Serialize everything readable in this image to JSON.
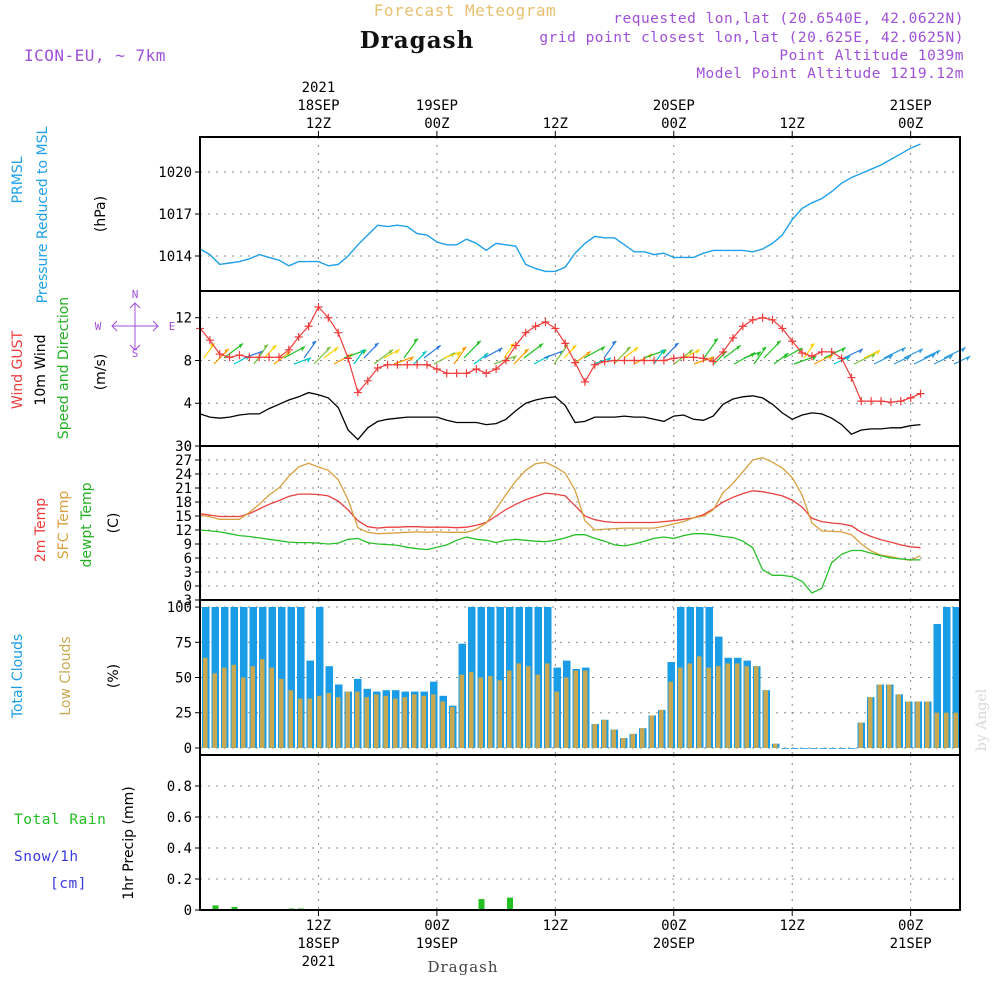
{
  "header": {
    "forecast_title": "Forecast Meteogram",
    "location": "Dragash",
    "model": "ICON-EU, ~ 7km",
    "requested": "requested lon,lat (20.6540E, 42.0622N)",
    "grid_point": "grid point closest lon,lat (20.625E, 42.0625N)",
    "point_altitude": "Point Altitude 1039m",
    "model_altitude": "Model Point Altitude 1219.12m",
    "footer_location": "Dragash",
    "watermark": "by Angel"
  },
  "colors": {
    "pressure": "#1fa0e8",
    "gust": "#f03c3c",
    "wind": "#000000",
    "temp2m": "#e84040",
    "sfc": "#d8a040",
    "dewpt": "#28c028",
    "total_clouds": "#1a9de6",
    "low_clouds": "#c8a850",
    "rain": "#22c022",
    "snow": "#3a3ae0",
    "purple": "#a050d8"
  },
  "time_axis": {
    "top_labels": [
      {
        "line0": "2021",
        "line1": "18SEP",
        "line2": "12Z",
        "hour": 12
      },
      {
        "line0": "",
        "line1": "19SEP",
        "line2": "00Z",
        "hour": 24
      },
      {
        "line0": "",
        "line1": "",
        "line2": "12Z",
        "hour": 36
      },
      {
        "line0": "",
        "line1": "20SEP",
        "line2": "00Z",
        "hour": 48
      },
      {
        "line0": "",
        "line1": "",
        "line2": "12Z",
        "hour": 60
      },
      {
        "line0": "",
        "line1": "21SEP",
        "line2": "00Z",
        "hour": 72
      }
    ],
    "bottom_labels": [
      {
        "line1": "12Z",
        "line2": "18SEP",
        "line3": "2021",
        "hour": 12
      },
      {
        "line1": "00Z",
        "line2": "19SEP",
        "line3": "",
        "hour": 24
      },
      {
        "line1": "12Z",
        "line2": "",
        "line3": "",
        "hour": 36
      },
      {
        "line1": "00Z",
        "line2": "20SEP",
        "line3": "",
        "hour": 48
      },
      {
        "line1": "12Z",
        "line2": "",
        "line3": "",
        "hour": 60
      },
      {
        "line1": "00Z",
        "line2": "21SEP",
        "line3": "",
        "hour": 72
      }
    ],
    "range_hours": [
      0,
      77
    ]
  },
  "chart_data": [
    {
      "type": "line",
      "title": "PRMSL Pressure Reduced to MSL",
      "ylabel_lines": [
        "PRMSL",
        "Pressure Reduced to MSL"
      ],
      "units": "(hPa)",
      "ylim": [
        1011.5,
        1022.5
      ],
      "yticks": [
        1014,
        1017,
        1020
      ],
      "series": [
        {
          "name": "PRMSL",
          "values": [
            1014.5,
            1014.1,
            1013.4,
            1013.5,
            1013.6,
            1013.8,
            1014.1,
            1013.9,
            1013.7,
            1013.3,
            1013.6,
            1013.6,
            1013.6,
            1013.3,
            1013.4,
            1014.0,
            1014.8,
            1015.5,
            1016.2,
            1016.1,
            1016.2,
            1016.1,
            1015.6,
            1015.5,
            1015.0,
            1014.8,
            1014.8,
            1015.2,
            1014.9,
            1014.4,
            1014.9,
            1014.8,
            1014.7,
            1013.4,
            1013.1,
            1012.9,
            1012.9,
            1013.2,
            1014.2,
            1014.9,
            1015.4,
            1015.3,
            1015.3,
            1014.8,
            1014.3,
            1014.3,
            1014.1,
            1014.2,
            1013.9,
            1013.9,
            1013.9,
            1014.2,
            1014.4,
            1014.4,
            1014.4,
            1014.4,
            1014.3,
            1014.5,
            1014.9,
            1015.5,
            1016.6,
            1017.4,
            1017.8,
            1018.1,
            1018.6,
            1019.2,
            1019.6,
            1019.9,
            1020.2,
            1020.5,
            1020.9,
            1021.3,
            1021.7,
            1022.0
          ]
        }
      ]
    },
    {
      "type": "line",
      "title": "Wind GUST / 10m Wind Speed and Direction",
      "ylabel_lines": [
        "Wind GUST",
        "10m Wind",
        "Speed and Direction"
      ],
      "units": "(m/s)",
      "compass": {
        "n": "N",
        "s": "S",
        "w": "W",
        "e": "E"
      },
      "ylim": [
        0,
        14.5
      ],
      "yticks": [
        0,
        4,
        8,
        12
      ],
      "series": [
        {
          "name": "Wind GUST",
          "values": [
            11.0,
            9.9,
            8.6,
            8.3,
            8.5,
            8.3,
            8.3,
            8.3,
            8.3,
            9.0,
            10.2,
            11.2,
            13.0,
            12.0,
            10.6,
            8.2,
            5.0,
            6.1,
            7.3,
            7.6,
            7.6,
            7.6,
            7.6,
            7.6,
            7.2,
            6.8,
            6.8,
            6.8,
            7.2,
            6.8,
            7.2,
            8.0,
            9.4,
            10.6,
            11.2,
            11.6,
            11.0,
            9.6,
            7.8,
            6.0,
            7.6,
            7.9,
            8.0,
            8.0,
            8.0,
            8.0,
            8.0,
            8.0,
            8.2,
            8.3,
            8.3,
            8.2,
            7.9,
            8.8,
            10.1,
            11.2,
            11.8,
            12.0,
            11.8,
            11.0,
            9.8,
            8.7,
            8.4,
            8.8,
            8.8,
            8.2,
            6.4,
            4.2,
            4.2,
            4.2,
            4.1,
            4.2,
            4.5,
            4.9
          ]
        },
        {
          "name": "10m Wind",
          "values": [
            3.0,
            2.7,
            2.6,
            2.7,
            2.9,
            3.0,
            3.0,
            3.5,
            3.9,
            4.3,
            4.6,
            5.0,
            4.8,
            4.5,
            3.6,
            1.5,
            0.6,
            1.7,
            2.3,
            2.5,
            2.6,
            2.7,
            2.7,
            2.7,
            2.7,
            2.4,
            2.2,
            2.2,
            2.2,
            2.0,
            2.1,
            2.5,
            3.3,
            4.0,
            4.3,
            4.5,
            4.6,
            3.8,
            2.2,
            2.3,
            2.7,
            2.7,
            2.7,
            2.8,
            2.7,
            2.7,
            2.5,
            2.3,
            2.8,
            2.9,
            2.5,
            2.4,
            2.8,
            3.9,
            4.4,
            4.6,
            4.7,
            4.5,
            3.9,
            3.1,
            2.5,
            2.9,
            3.1,
            3.0,
            2.6,
            2.0,
            1.1,
            1.5,
            1.6,
            1.6,
            1.7,
            1.7,
            1.9,
            2.0
          ]
        }
      ]
    },
    {
      "type": "line",
      "title": "2m Temp / SFC Temp / dewpt Temp",
      "ylabel_lines": [
        "2m Temp",
        "SFC Temp",
        "dewpt Temp"
      ],
      "units": "(C)",
      "ylim": [
        -3,
        30
      ],
      "yticks": [
        -3,
        0,
        3,
        6,
        9,
        12,
        15,
        18,
        21,
        24,
        27,
        30
      ],
      "series": [
        {
          "name": "2m Temp",
          "values": [
            15.5,
            15.2,
            14.9,
            14.9,
            14.9,
            15.5,
            16.5,
            17.5,
            18.3,
            19.2,
            19.7,
            19.7,
            19.6,
            19.3,
            18.2,
            16.3,
            14.0,
            12.7,
            12.4,
            12.6,
            12.6,
            12.7,
            12.7,
            12.6,
            12.6,
            12.6,
            12.5,
            12.6,
            13.0,
            13.6,
            15.0,
            16.4,
            17.5,
            18.5,
            19.2,
            19.9,
            19.7,
            19.3,
            17.2,
            15.0,
            14.2,
            13.8,
            13.6,
            13.6,
            13.6,
            13.6,
            13.6,
            13.8,
            14.0,
            14.3,
            14.6,
            15.3,
            16.5,
            18.0,
            19.0,
            19.8,
            20.4,
            20.2,
            19.8,
            19.3,
            18.4,
            16.9,
            14.5,
            13.8,
            13.5,
            13.3,
            12.9,
            11.5,
            10.6,
            9.9,
            9.4,
            8.8,
            8.4,
            8.2
          ]
        },
        {
          "name": "SFC Temp",
          "values": [
            15.2,
            14.8,
            14.3,
            14.3,
            14.3,
            15.8,
            17.5,
            19.5,
            21.0,
            23.5,
            25.5,
            26.3,
            25.5,
            24.8,
            22.8,
            18.5,
            12.5,
            11.5,
            11.2,
            11.3,
            11.4,
            11.5,
            11.6,
            11.5,
            11.6,
            11.5,
            11.5,
            11.5,
            12.2,
            13.5,
            16.5,
            19.6,
            22.5,
            24.8,
            26.2,
            26.5,
            25.5,
            24.2,
            20.5,
            14.0,
            12.0,
            12.2,
            12.3,
            12.4,
            12.4,
            12.4,
            12.4,
            12.8,
            13.3,
            13.8,
            14.6,
            15.0,
            16.3,
            20.0,
            22.0,
            24.5,
            27.0,
            27.5,
            26.5,
            25.3,
            23.2,
            19.5,
            13.5,
            11.8,
            11.7,
            11.6,
            11.0,
            9.0,
            7.5,
            6.6,
            6.3,
            5.8,
            5.5,
            6.5
          ]
        },
        {
          "name": "dewpt Temp",
          "values": [
            12.0,
            11.8,
            11.6,
            11.2,
            10.8,
            10.6,
            10.3,
            10.0,
            9.7,
            9.4,
            9.3,
            9.3,
            9.2,
            9.0,
            9.2,
            10.0,
            10.2,
            9.3,
            9.0,
            8.9,
            8.7,
            8.3,
            8.0,
            7.8,
            8.3,
            8.8,
            9.8,
            10.5,
            10.0,
            9.8,
            9.3,
            9.8,
            10.0,
            9.8,
            9.6,
            9.5,
            9.8,
            10.3,
            11.0,
            11.0,
            10.2,
            9.6,
            8.8,
            8.6,
            9.0,
            9.6,
            10.2,
            10.5,
            10.2,
            10.8,
            11.2,
            11.2,
            11.0,
            10.6,
            10.4,
            9.6,
            8.2,
            3.5,
            2.3,
            2.3,
            2.0,
            1.0,
            -1.5,
            -0.5,
            5.0,
            6.8,
            7.6,
            7.6,
            7.0,
            6.5,
            6.0,
            5.8,
            5.6,
            5.6
          ]
        }
      ]
    },
    {
      "type": "bar",
      "title": "Total Clouds / Low Clouds",
      "ylabel_lines": [
        "Total Clouds",
        "Low Clouds"
      ],
      "units": "(%)",
      "ylim": [
        -5,
        105
      ],
      "yticks": [
        0,
        25,
        50,
        75,
        100
      ],
      "series": [
        {
          "name": "Total Clouds",
          "values": [
            100,
            100,
            100,
            100,
            100,
            100,
            100,
            100,
            100,
            100,
            100,
            62,
            100,
            58,
            45,
            40,
            49,
            42,
            40,
            41,
            41,
            40,
            40,
            40,
            47,
            37,
            30,
            74,
            100,
            100,
            100,
            100,
            100,
            100,
            100,
            100,
            100,
            57,
            62,
            56,
            57,
            17,
            20,
            13,
            7,
            10,
            14,
            23,
            27,
            61,
            100,
            100,
            100,
            100,
            79,
            64,
            64,
            62,
            58,
            41,
            3,
            0,
            0,
            0,
            0,
            0,
            0,
            0,
            0,
            18,
            36,
            45,
            45,
            38,
            33,
            33,
            33,
            88,
            100,
            100
          ]
        },
        {
          "name": "Low Clouds",
          "values": [
            64,
            53,
            57,
            59,
            50,
            58,
            63,
            57,
            49,
            41,
            35,
            35,
            37,
            39,
            36,
            40,
            40,
            36,
            38,
            37,
            35,
            36,
            38,
            37,
            38,
            33,
            29,
            52,
            54,
            50,
            51,
            48,
            55,
            60,
            58,
            52,
            60,
            40,
            50,
            55,
            55,
            17,
            20,
            13,
            7,
            10,
            14,
            23,
            27,
            47,
            57,
            60,
            65,
            57,
            58,
            60,
            60,
            58,
            58,
            41,
            3,
            0,
            0,
            0,
            0,
            0,
            0,
            0,
            0,
            18,
            36,
            45,
            45,
            38,
            33,
            33,
            33,
            25,
            25,
            25
          ]
        }
      ]
    },
    {
      "type": "bar",
      "title": "1hr Precip",
      "ylabel_lines": [
        "1hr Precip (mm)"
      ],
      "left_labels": [
        "Total Rain",
        "Snow/1h",
        "[cm]"
      ],
      "ylim": [
        0,
        1.0
      ],
      "yticks": [
        0,
        0.2,
        0.4,
        0.6,
        0.8
      ],
      "series": [
        {
          "name": "Total Rain",
          "values": [
            0,
            0.03,
            0,
            0.02,
            0,
            0,
            0,
            0,
            0,
            0.01,
            0.01,
            0,
            0,
            0,
            0,
            0,
            0,
            0,
            0,
            0,
            0,
            0,
            0,
            0,
            0,
            0,
            0,
            0,
            0,
            0.07,
            0,
            0,
            0.08,
            0,
            0,
            0,
            0,
            0,
            0,
            0,
            0,
            0,
            0,
            0,
            0,
            0,
            0,
            0,
            0,
            0,
            0,
            0,
            0,
            0,
            0,
            0,
            0,
            0,
            0,
            0,
            0,
            0,
            0,
            0,
            0,
            0,
            0,
            0,
            0,
            0,
            0,
            0,
            0,
            0,
            0,
            0,
            0,
            0,
            0,
            0
          ]
        }
      ]
    }
  ]
}
